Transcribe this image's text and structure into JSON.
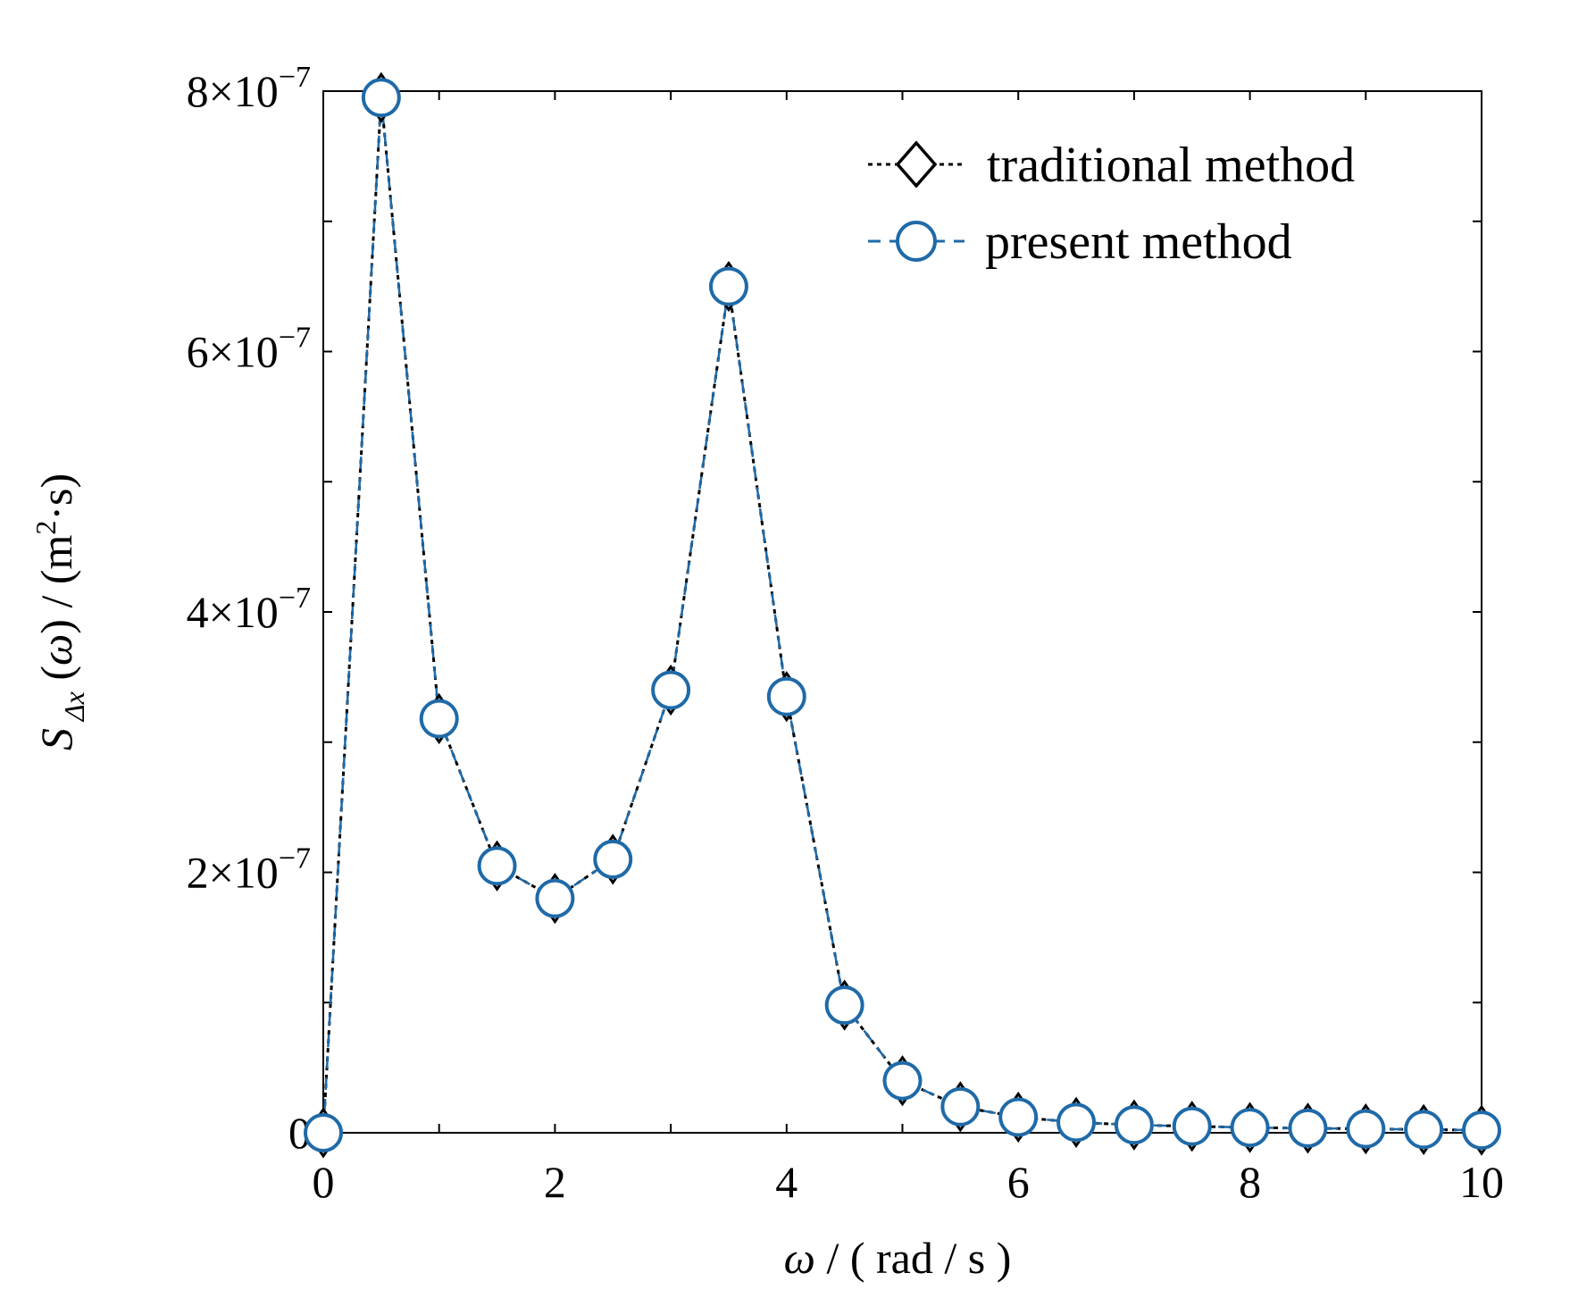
{
  "chart_data": {
    "type": "line",
    "xlabel": "ω / ( rad / s )",
    "ylabel": "S Δx (ω) / (m²·s)",
    "xlim": [
      0,
      10
    ],
    "ylim": [
      0,
      8e-07
    ],
    "grid": false,
    "legend_position": "top-right",
    "x_ticks": [
      0,
      2,
      4,
      6,
      8,
      10
    ],
    "x_tick_labels": [
      "0",
      "2",
      "4",
      "6",
      "8",
      "10"
    ],
    "y_ticks": [
      0,
      2e-07,
      4e-07,
      6e-07,
      8e-07
    ],
    "y_tick_labels": [
      {
        "mantissa": "0",
        "exp": ""
      },
      {
        "mantissa": "2×10",
        "exp": "−7"
      },
      {
        "mantissa": "4×10",
        "exp": "−7"
      },
      {
        "mantissa": "6×10",
        "exp": "−7"
      },
      {
        "mantissa": "8×10",
        "exp": "−7"
      }
    ],
    "x": [
      0,
      0.5,
      1,
      1.5,
      2,
      2.5,
      3,
      3.5,
      4,
      4.5,
      5,
      5.5,
      6,
      6.5,
      7,
      7.5,
      8,
      8.5,
      9,
      9.5,
      10
    ],
    "series": [
      {
        "name": "traditional method",
        "marker": "diamond",
        "line": "dotted",
        "color": "#000000",
        "values": [
          0,
          7.95e-07,
          3.18e-07,
          2.05e-07,
          1.8e-07,
          2.1e-07,
          3.4e-07,
          6.5e-07,
          3.35e-07,
          9.8e-08,
          4e-08,
          2e-08,
          1.2e-08,
          8e-09,
          6e-09,
          5e-09,
          4e-09,
          3.5e-09,
          3e-09,
          2.5e-09,
          2e-09
        ]
      },
      {
        "name": "present method",
        "marker": "circle",
        "line": "dashed",
        "color": "#1f6aa8",
        "values": [
          0,
          7.95e-07,
          3.18e-07,
          2.05e-07,
          1.8e-07,
          2.1e-07,
          3.4e-07,
          6.5e-07,
          3.35e-07,
          9.8e-08,
          4e-08,
          2e-08,
          1.2e-08,
          8e-09,
          6e-09,
          5e-09,
          4e-09,
          3.5e-09,
          3e-09,
          2.5e-09,
          2e-09
        ]
      }
    ]
  }
}
